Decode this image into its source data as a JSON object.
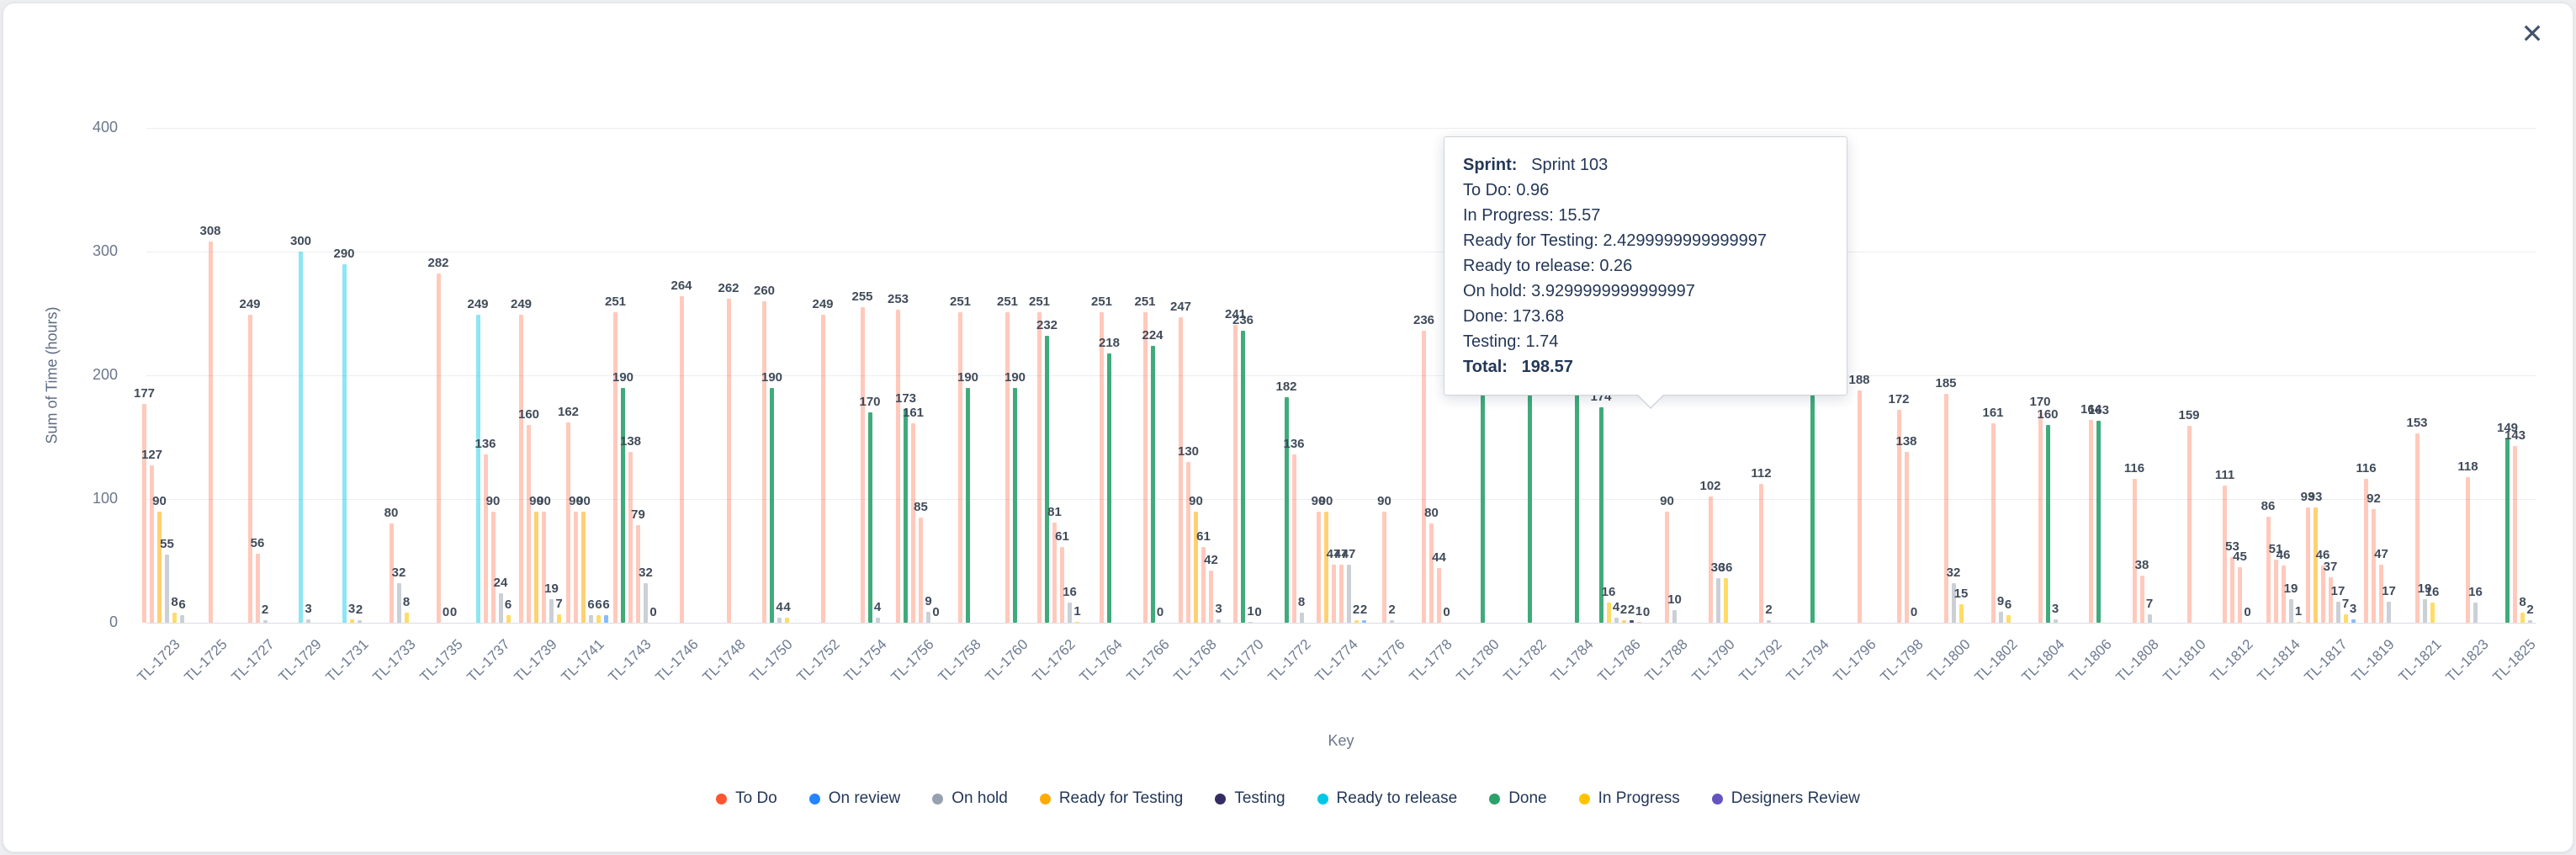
{
  "window": {
    "close_label": "✕"
  },
  "tooltip": {
    "title_label": "Sprint:",
    "title_value": "Sprint 103",
    "rows": [
      "To Do: 0.96",
      "In Progress: 15.57",
      "Ready for Testing: 2.4299999999999997",
      "Ready to release: 0.26",
      "On hold: 3.9299999999999997",
      "Done: 173.68",
      "Testing: 1.74"
    ],
    "total_label": "Total:",
    "total_value": "198.57"
  },
  "chart_data": {
    "type": "bar",
    "title": "",
    "xlabel": "Key",
    "ylabel": "Sum of Time (hours)",
    "ylim": [
      0,
      400
    ],
    "yticks": [
      0,
      100,
      200,
      300,
      400
    ],
    "grid": true,
    "legend_position": "bottom",
    "series_legend": [
      {
        "name": "To Do",
        "color": "#FF5630"
      },
      {
        "name": "On review",
        "color": "#2684FF"
      },
      {
        "name": "On hold",
        "color": "#98A1B0"
      },
      {
        "name": "Ready for Testing",
        "color": "#FFAB00"
      },
      {
        "name": "Testing",
        "color": "#352C63"
      },
      {
        "name": "Ready to release",
        "color": "#00C7E6"
      },
      {
        "name": "Done",
        "color": "#2BA26B"
      },
      {
        "name": "In Progress",
        "color": "#FFC400"
      },
      {
        "name": "Designers Review",
        "color": "#6554C0"
      }
    ],
    "categories": [
      "TL-1723",
      "TL-1725",
      "TL-1727",
      "TL-1729",
      "TL-1731",
      "TL-1733",
      "TL-1735",
      "TL-1737",
      "TL-1739",
      "TL-1741",
      "TL-1743",
      "TL-1746",
      "TL-1748",
      "TL-1750",
      "TL-1752",
      "TL-1754",
      "TL-1756",
      "TL-1758",
      "TL-1760",
      "TL-1762",
      "TL-1764",
      "TL-1766",
      "TL-1768",
      "TL-1770",
      "TL-1772",
      "TL-1774",
      "TL-1776",
      "TL-1778",
      "TL-1780",
      "TL-1782",
      "TL-1784",
      "TL-1786",
      "TL-1788",
      "TL-1790",
      "TL-1792",
      "TL-1794",
      "TL-1796",
      "TL-1798",
      "TL-1800",
      "TL-1802",
      "TL-1804",
      "TL-1806",
      "TL-1808",
      "TL-1810",
      "TL-1812",
      "TL-1814",
      "TL-1817",
      "TL-1819",
      "TL-1821",
      "TL-1823",
      "TL-1825"
    ],
    "bars": [
      [
        [
          177,
          0
        ],
        [
          127,
          0
        ],
        [
          90,
          3
        ],
        [
          55,
          2
        ],
        [
          8,
          7
        ],
        [
          6,
          2
        ]
      ],
      [
        [
          308,
          0
        ]
      ],
      [
        [
          249,
          0
        ],
        [
          56,
          0
        ],
        [
          2,
          2
        ]
      ],
      [
        [
          300,
          5
        ],
        [
          3,
          2
        ]
      ],
      [
        [
          290,
          5
        ],
        [
          3,
          7
        ],
        [
          2,
          2
        ]
      ],
      [
        [
          80,
          0
        ],
        [
          32,
          2
        ],
        [
          8,
          7
        ]
      ],
      [
        [
          282,
          0
        ],
        [
          0,
          2
        ],
        [
          0,
          7
        ]
      ],
      [
        [
          249,
          5
        ],
        [
          136,
          0
        ],
        [
          90,
          0
        ],
        [
          24,
          2
        ],
        [
          6,
          7
        ]
      ],
      [
        [
          249,
          0
        ],
        [
          160,
          0
        ],
        [
          90,
          3
        ],
        [
          90,
          0
        ],
        [
          19,
          2
        ],
        [
          7,
          7
        ]
      ],
      [
        [
          162,
          0
        ],
        [
          90,
          0
        ],
        [
          90,
          3
        ],
        [
          6,
          2
        ],
        [
          6,
          7
        ],
        [
          6,
          1
        ]
      ],
      [
        [
          251,
          0
        ],
        [
          190,
          6
        ],
        [
          138,
          0
        ],
        [
          79,
          0
        ],
        [
          32,
          2
        ],
        [
          0,
          7
        ]
      ],
      [
        [
          264,
          0
        ]
      ],
      [
        [
          262,
          0
        ]
      ],
      [
        [
          260,
          0
        ],
        [
          190,
          6
        ],
        [
          4,
          2
        ],
        [
          4,
          7
        ]
      ],
      [
        [
          249,
          0
        ]
      ],
      [
        [
          255,
          0
        ],
        [
          170,
          6
        ],
        [
          4,
          2
        ]
      ],
      [
        [
          253,
          0
        ],
        [
          173,
          6
        ],
        [
          161,
          0
        ],
        [
          85,
          0
        ],
        [
          9,
          2
        ],
        [
          0,
          7
        ]
      ],
      [
        [
          251,
          0
        ],
        [
          190,
          6
        ]
      ],
      [
        [
          251,
          0
        ],
        [
          190,
          6
        ]
      ],
      [
        [
          251,
          0
        ],
        [
          232,
          6
        ],
        [
          81,
          0
        ],
        [
          61,
          0
        ],
        [
          16,
          2
        ],
        [
          1,
          7
        ]
      ],
      [
        [
          251,
          0
        ],
        [
          218,
          6
        ]
      ],
      [
        [
          251,
          0
        ],
        [
          224,
          6
        ],
        [
          0,
          2
        ]
      ],
      [
        [
          247,
          0
        ],
        [
          130,
          0
        ],
        [
          90,
          3
        ],
        [
          61,
          0
        ],
        [
          42,
          0
        ],
        [
          3,
          2
        ]
      ],
      [
        [
          241,
          0
        ],
        [
          236,
          6
        ],
        [
          1,
          2
        ],
        [
          0,
          7
        ]
      ],
      [
        [
          182,
          6
        ],
        [
          136,
          0
        ],
        [
          8,
          2
        ]
      ],
      [
        [
          90,
          0
        ],
        [
          90,
          3
        ],
        [
          47,
          0
        ],
        [
          47,
          0
        ],
        [
          47,
          2
        ],
        [
          2,
          7
        ],
        [
          2,
          1
        ]
      ],
      [
        [
          90,
          0
        ],
        [
          2,
          2
        ]
      ],
      [
        [
          236,
          0
        ],
        [
          80,
          0
        ],
        [
          44,
          0
        ],
        [
          0,
          2
        ]
      ],
      [
        [
          220,
          6
        ]
      ],
      [
        [
          210,
          6
        ]
      ],
      [
        [
          205,
          6
        ]
      ],
      [
        [
          174,
          6
        ],
        [
          16,
          7
        ],
        [
          4,
          2
        ],
        [
          2,
          3
        ],
        [
          2,
          4
        ],
        [
          1,
          0
        ],
        [
          0,
          5
        ]
      ],
      [
        [
          90,
          0
        ],
        [
          10,
          2
        ]
      ],
      [
        [
          102,
          0
        ],
        [
          36,
          2
        ],
        [
          36,
          7
        ]
      ],
      [
        [
          112,
          0
        ],
        [
          2,
          2
        ]
      ],
      [
        [
          205,
          6
        ]
      ],
      [
        [
          188,
          0
        ]
      ],
      [
        [
          172,
          0
        ],
        [
          138,
          0
        ],
        [
          0,
          2
        ]
      ],
      [
        [
          185,
          0
        ],
        [
          32,
          2
        ],
        [
          15,
          7
        ]
      ],
      [
        [
          161,
          0
        ],
        [
          9,
          2
        ],
        [
          6,
          7
        ]
      ],
      [
        [
          170,
          0
        ],
        [
          160,
          6
        ],
        [
          3,
          2
        ]
      ],
      [
        [
          164,
          0
        ],
        [
          163,
          6
        ]
      ],
      [
        [
          116,
          0
        ],
        [
          38,
          0
        ],
        [
          7,
          2
        ]
      ],
      [
        [
          159,
          0
        ]
      ],
      [
        [
          111,
          0
        ],
        [
          53,
          0
        ],
        [
          45,
          0
        ],
        [
          0,
          2
        ]
      ],
      [
        [
          86,
          0
        ],
        [
          51,
          0
        ],
        [
          46,
          0
        ],
        [
          19,
          2
        ],
        [
          1,
          7
        ]
      ],
      [
        [
          93,
          0
        ],
        [
          93,
          3
        ],
        [
          46,
          0
        ],
        [
          37,
          0
        ],
        [
          17,
          2
        ],
        [
          7,
          7
        ],
        [
          3,
          1
        ]
      ],
      [
        [
          116,
          0
        ],
        [
          92,
          0
        ],
        [
          47,
          0
        ],
        [
          17,
          2
        ]
      ],
      [
        [
          153,
          0
        ],
        [
          19,
          2
        ],
        [
          16,
          7
        ]
      ],
      [
        [
          118,
          0
        ],
        [
          16,
          2
        ]
      ],
      [
        [
          149,
          6
        ],
        [
          143,
          0
        ],
        [
          8,
          7
        ],
        [
          2,
          2
        ]
      ]
    ]
  }
}
